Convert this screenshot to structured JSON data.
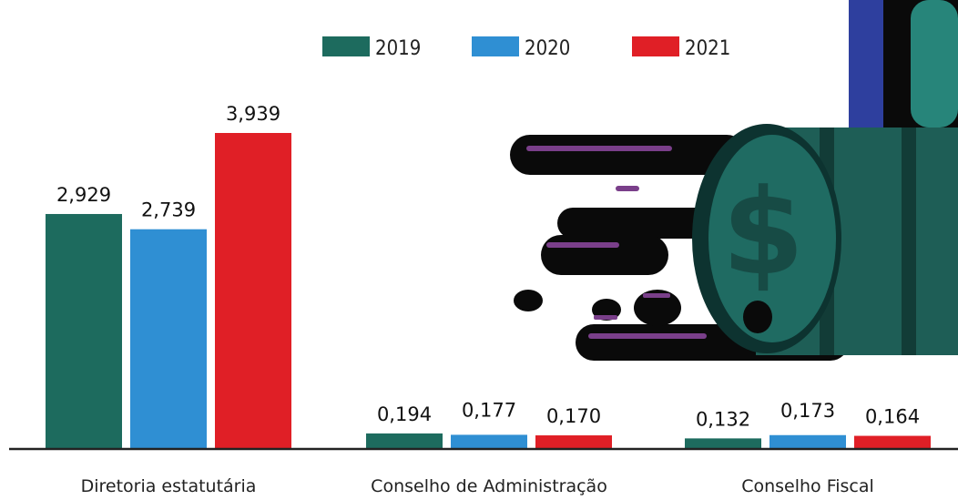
{
  "chart_data": {
    "type": "bar",
    "categories": [
      "Diretoria estatutária",
      "Conselho de Administração",
      "Conselho Fiscal"
    ],
    "series": [
      {
        "name": "2019",
        "color": "#1d6b5e",
        "values": [
          2.929,
          0.194,
          0.132
        ],
        "labels": [
          "2,929",
          "0,194",
          "0,132"
        ]
      },
      {
        "name": "2020",
        "color": "#2f8fd3",
        "values": [
          2.739,
          0.177,
          0.173
        ],
        "labels": [
          "2,739",
          "0,177",
          "0,173"
        ]
      },
      {
        "name": "2021",
        "color": "#e01f26",
        "values": [
          3.939,
          0.17,
          0.164
        ],
        "labels": [
          "3,939",
          "0,170",
          "0,164"
        ]
      }
    ],
    "title": "",
    "xlabel": "",
    "ylabel": "",
    "ylim": [
      0,
      4.6
    ],
    "grid": false,
    "legend": "top"
  }
}
